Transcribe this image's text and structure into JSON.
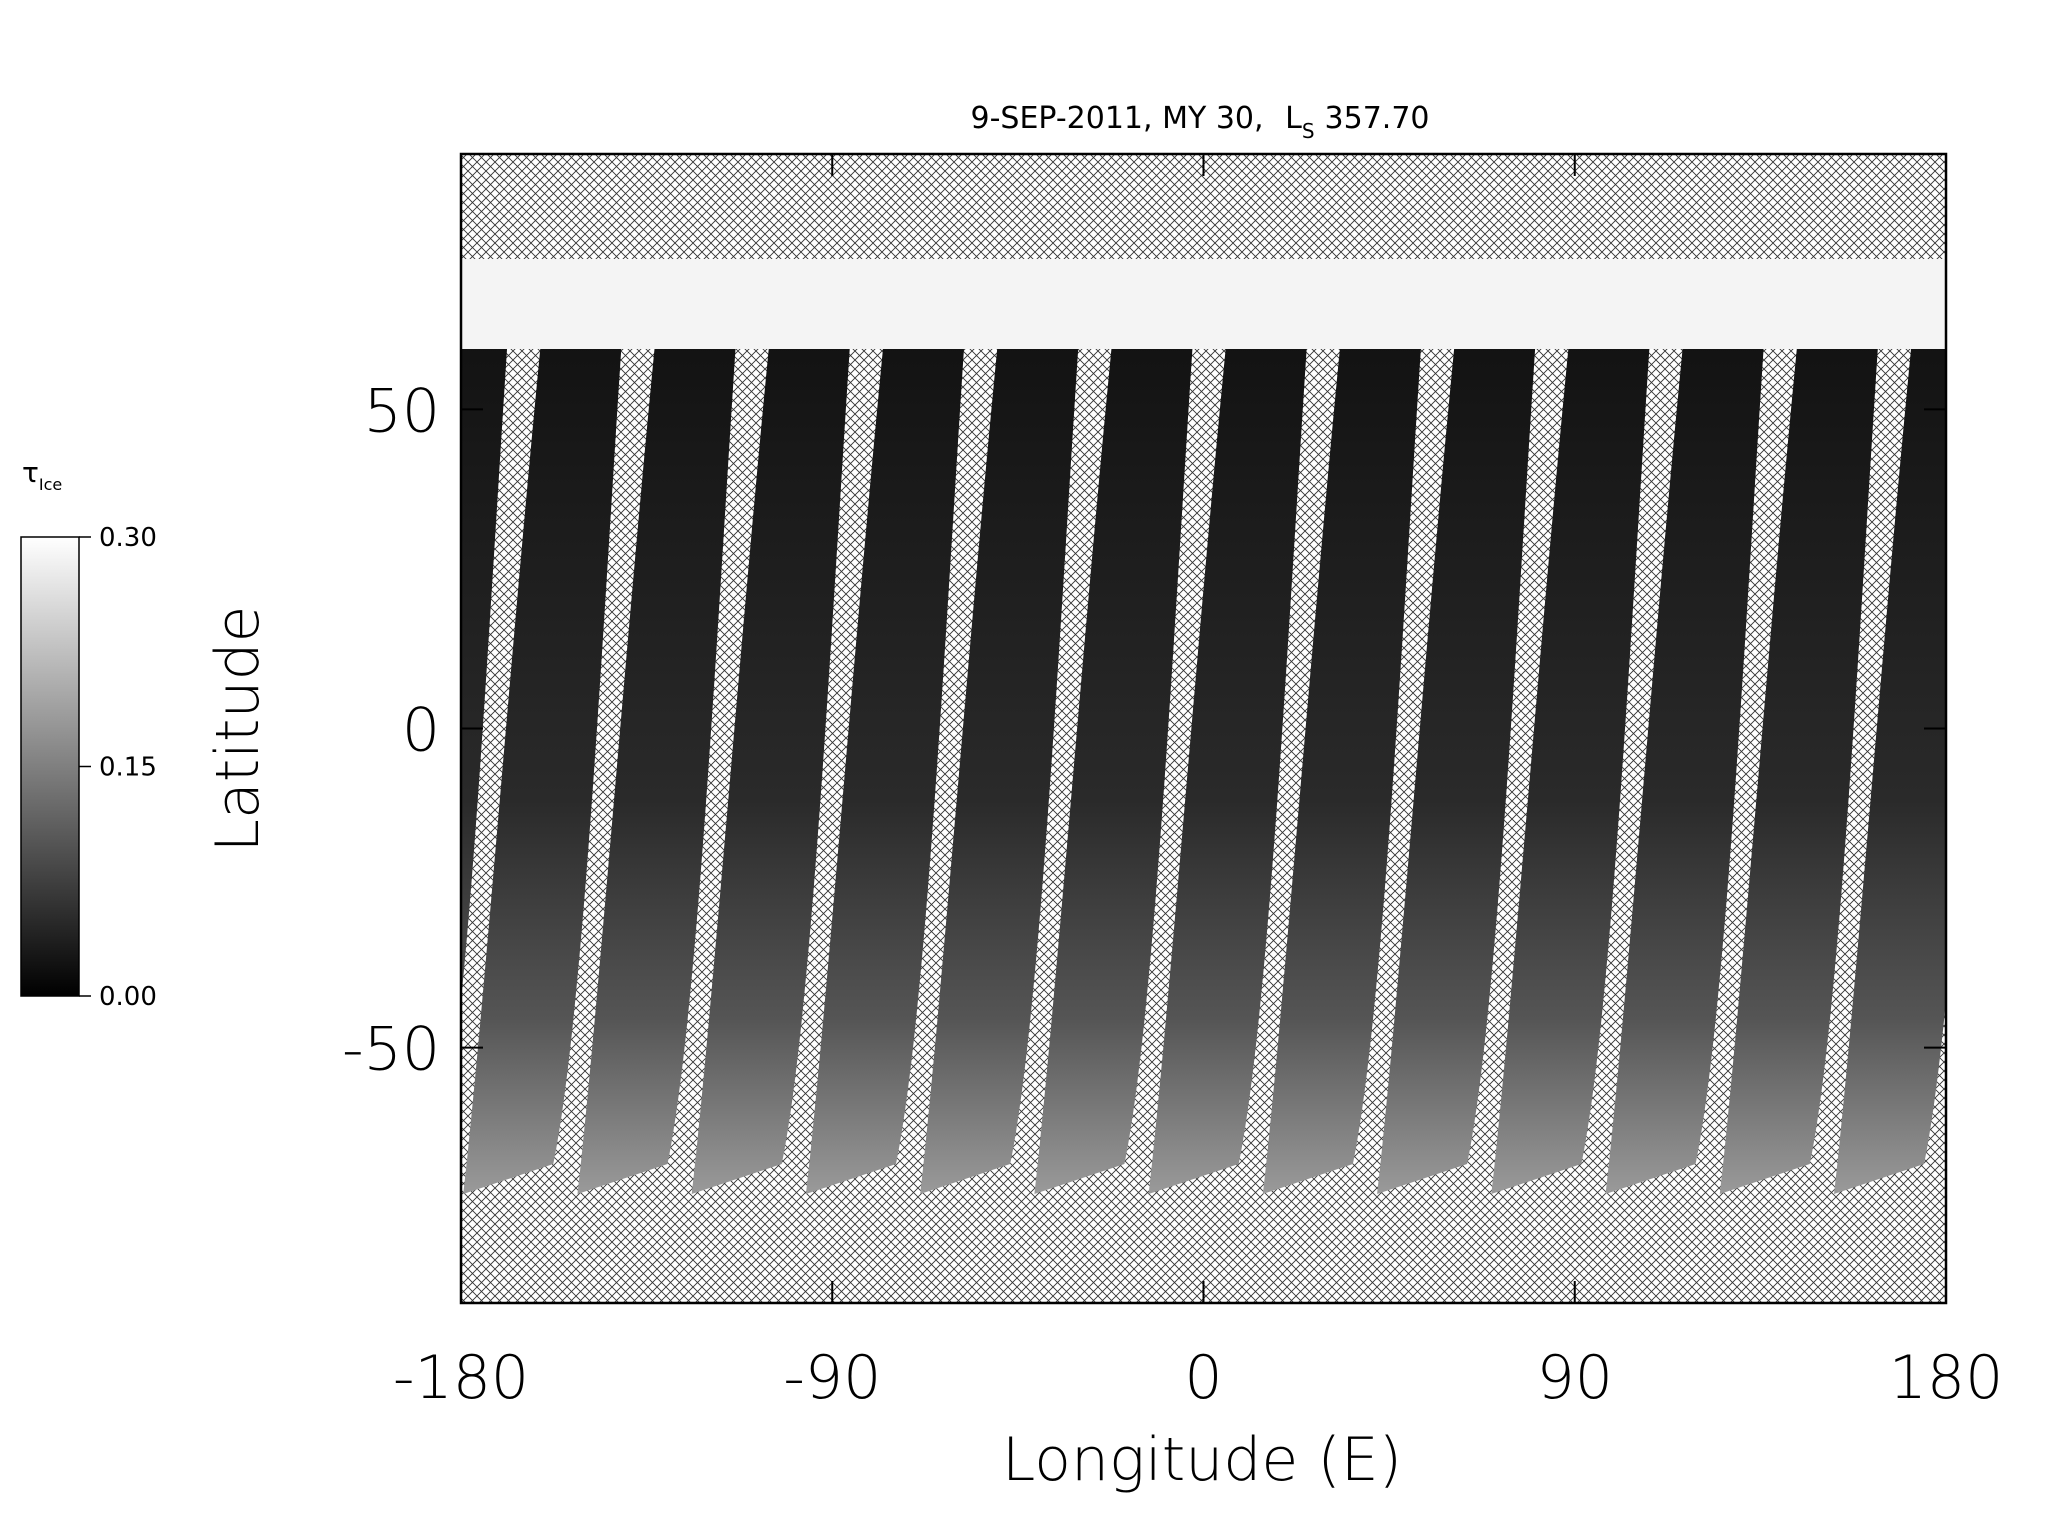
{
  "chart_data": {
    "type": "map",
    "title": "9-SEP-2011, MY 30,",
    "ls_symbol": "L",
    "ls_subscript": "S",
    "ls_value": "357.70",
    "x_label": "Longitude (E)",
    "y_label": "Latitude",
    "xlim": [
      -180,
      180
    ],
    "ylim": [
      -90,
      90
    ],
    "xticks": [
      -180,
      -90,
      0,
      90,
      180
    ],
    "yticks": [
      -50,
      0,
      50
    ],
    "colorbar": {
      "symbol": "τ",
      "subscript": "Ice",
      "clim": [
        0,
        0.3
      ],
      "ticks": [
        {
          "value": 0,
          "label": "0.00"
        },
        {
          "value": 0.15,
          "label": "0.15"
        },
        {
          "value": 0.3,
          "label": "0.30"
        }
      ],
      "colors": [
        "#000000",
        "#ffffff"
      ]
    }
  }
}
